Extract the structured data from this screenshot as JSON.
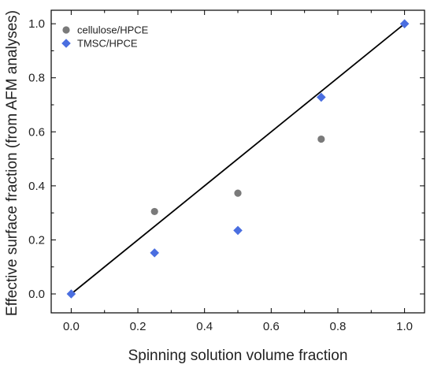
{
  "chart_data": {
    "type": "scatter",
    "xlabel": "Spinning solution volume fraction",
    "ylabel": "Effective surface fraction (from AFM analyses)",
    "xlim": [
      -0.06,
      1.06
    ],
    "ylim": [
      -0.07,
      1.05
    ],
    "x_ticks": [
      0.0,
      0.2,
      0.4,
      0.6,
      0.8,
      1.0
    ],
    "x_tick_labels": [
      "0.0",
      "0.2",
      "0.4",
      "0.6",
      "0.8",
      "1.0"
    ],
    "y_ticks": [
      0.0,
      0.2,
      0.4,
      0.6,
      0.8,
      1.0
    ],
    "y_tick_labels": [
      "0.0",
      "0.2",
      "0.4",
      "0.6",
      "0.8",
      "1.0"
    ],
    "minor_tick_step": 0.1,
    "grid": false,
    "legend_position": "top-left",
    "series": [
      {
        "name": "cellulose/HPCE",
        "marker": "circle",
        "color": "#7a7a7a",
        "x": [
          0.25,
          0.5,
          0.75
        ],
        "y": [
          0.305,
          0.373,
          0.573
        ]
      },
      {
        "name": "TMSC/HPCE",
        "marker": "diamond",
        "color": "#4a6ee0",
        "x": [
          0.0,
          0.25,
          0.5,
          0.75,
          1.0
        ],
        "y": [
          0.0,
          0.152,
          0.235,
          0.728,
          1.0
        ]
      }
    ],
    "reference_line": {
      "x": [
        0.0,
        1.0
      ],
      "y": [
        0.0,
        1.0
      ],
      "color": "#000000"
    }
  }
}
